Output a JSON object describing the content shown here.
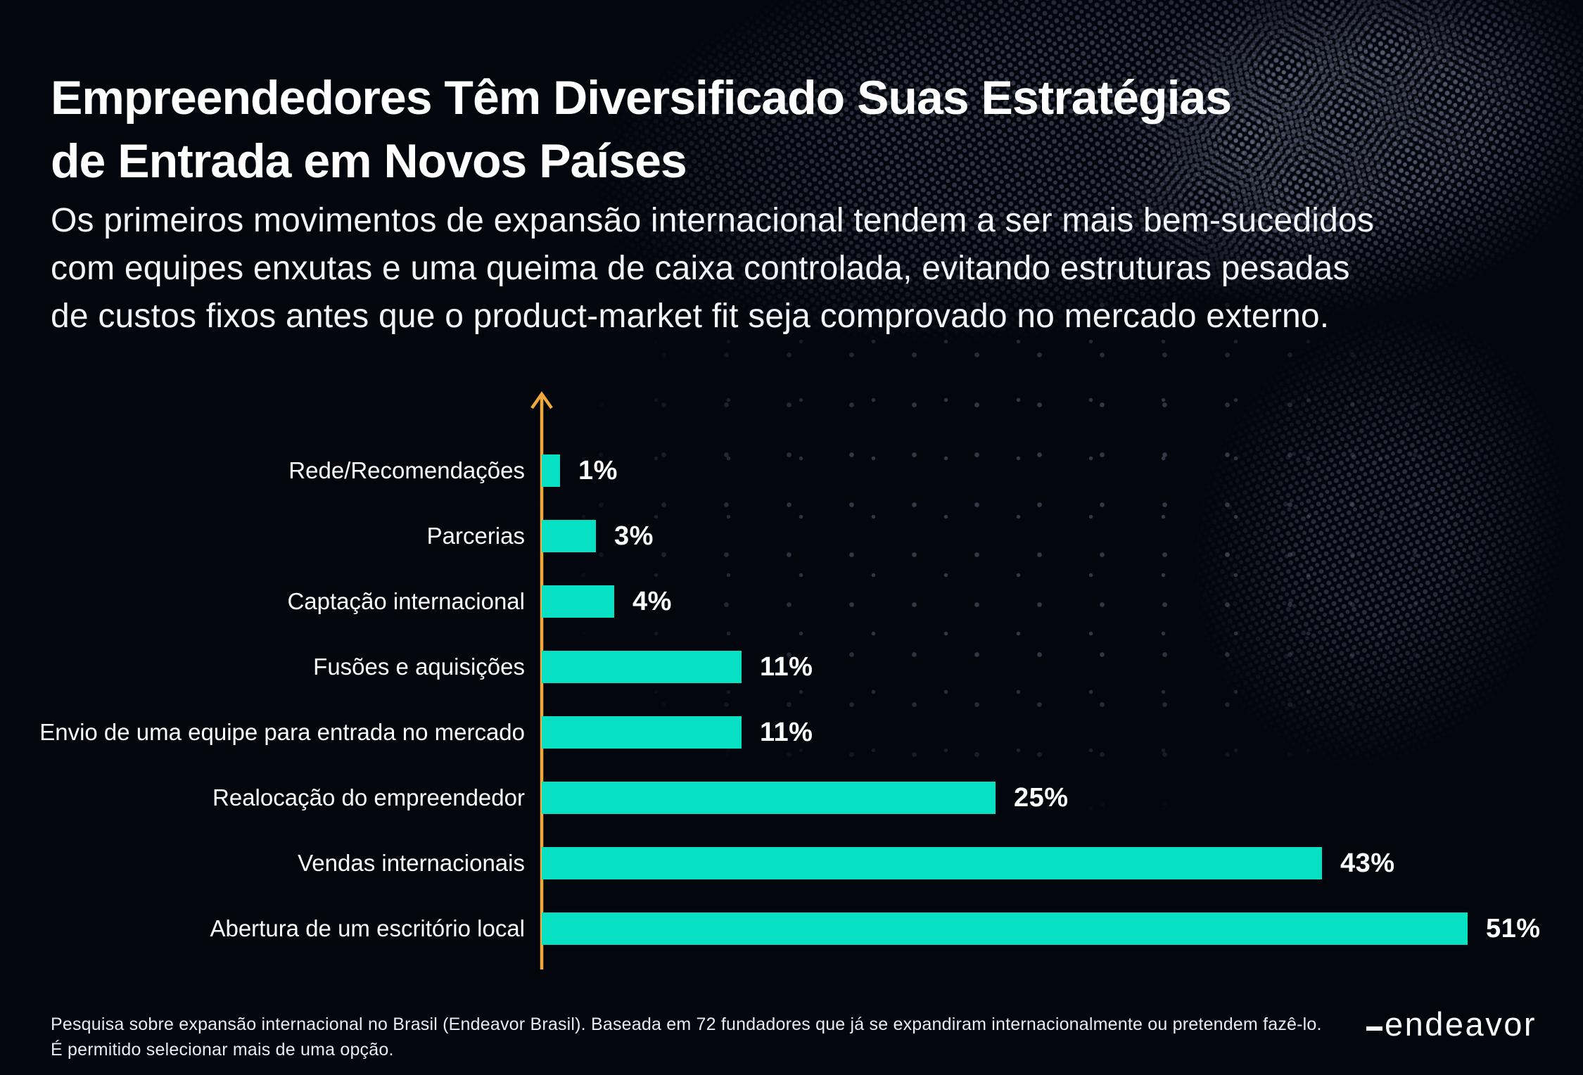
{
  "header": {
    "title_lines": [
      "Empreendedores Têm Diversificado Suas Estratégias",
      "de Entrada em Novos Países"
    ],
    "subtitle_lines": [
      "Os primeiros movimentos de expansão internacional tendem a ser mais bem-sucedidos",
      "com equipes enxutas e uma queima de caixa controlada, evitando estruturas pesadas",
      "de custos fixos antes que o product-market fit seja comprovado no mercado externo."
    ]
  },
  "chart_data": {
    "type": "bar",
    "orientation": "horizontal",
    "title": "Empreendedores Têm Diversificado Suas Estratégias de Entrada em Novos Países",
    "categories": [
      "Rede/Recomendações",
      "Parcerias",
      "Captação internacional",
      "Fusões e aquisições",
      "Envio de uma equipe para entrada no mercado",
      "Realocação do empreendedor",
      "Vendas internacionais",
      "Abertura de um escritório local"
    ],
    "values": [
      1,
      3,
      4,
      11,
      11,
      25,
      43,
      51
    ],
    "value_suffix": "%",
    "xlabel": "",
    "ylabel": "",
    "xlim": [
      0,
      55
    ],
    "grid": false,
    "legend": false,
    "data_labels": "outside-end"
  },
  "footer": {
    "source_line1": "Pesquisa sobre expansão internacional no Brasil (Endeavor Brasil). Baseada em 72 fundadores que já se expandiram internacionalmente ou pretendem fazê-lo.",
    "source_line2": "É permitido selecionar mais de uma opção.",
    "logo_text": "endeavor"
  },
  "colors": {
    "background": "#04060E",
    "title_text": "#FFFFFF",
    "bar": "#06E0C3",
    "axis": "#F0A93A",
    "dots": "#97A2C0",
    "footer_text": "#E8EBF2"
  }
}
